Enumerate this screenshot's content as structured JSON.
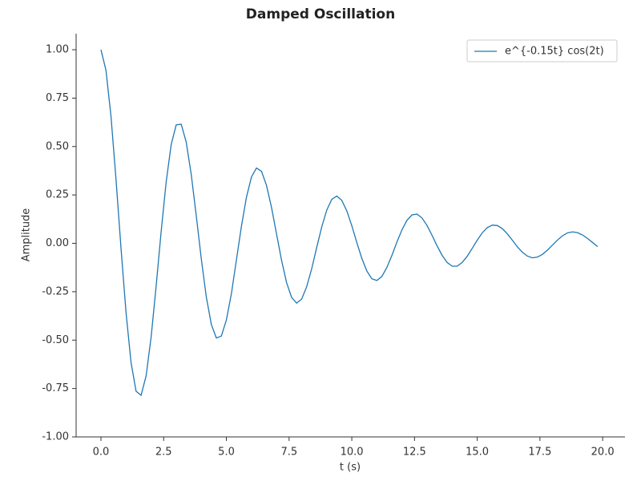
{
  "chart_data": {
    "type": "line",
    "title": "Damped Oscillation",
    "xlabel": "t (s)",
    "ylabel": "Amplitude",
    "xlim": [
      -0.99,
      20.89
    ],
    "ylim": [
      -1,
      1.083
    ],
    "xticks": [
      {
        "value": 0,
        "label": "0.0"
      },
      2.5,
      {
        "value": 5,
        "label": "5.0"
      },
      7.5,
      {
        "value": 10,
        "label": "10.0"
      },
      12.5,
      {
        "value": 15,
        "label": "15.0"
      },
      17.5,
      {
        "value": 20,
        "label": "20.0"
      }
    ],
    "yticks": [
      {
        "value": -1,
        "label": "-1.00"
      },
      {
        "value": -0.75,
        "label": "-0.75"
      },
      {
        "value": -0.5,
        "label": "-0.50"
      },
      {
        "value": -0.25,
        "label": "-0.25"
      },
      {
        "value": 0,
        "label": "0.00"
      },
      {
        "value": 0.25,
        "label": "0.25"
      },
      {
        "value": 0.5,
        "label": "0.50"
      },
      {
        "value": 0.75,
        "label": "0.75"
      },
      {
        "value": 1,
        "label": "1.00"
      }
    ],
    "grid": false,
    "legend": "upper right",
    "x": [
      0,
      0.2,
      0.4,
      0.6,
      0.8,
      1,
      1.2,
      1.4,
      1.6,
      1.8,
      2,
      2.2,
      2.4,
      2.6,
      2.8,
      3,
      3.2,
      3.4,
      3.6,
      3.8,
      4,
      4.2,
      4.4,
      4.6,
      4.8,
      5,
      5.2,
      5.4,
      5.6,
      5.8,
      6,
      6.2,
      6.4,
      6.6,
      6.8,
      7,
      7.2,
      7.4,
      7.6,
      7.8,
      8,
      8.2,
      8.4,
      8.6,
      8.8,
      9,
      9.2,
      9.4,
      9.6,
      9.8,
      10,
      10.2,
      10.4,
      10.6,
      10.8,
      11,
      11.2,
      11.4,
      11.6,
      11.8,
      12,
      12.2,
      12.4,
      12.6,
      12.8,
      13,
      13.2,
      13.4,
      13.6,
      13.8,
      14,
      14.2,
      14.4,
      14.6,
      14.8,
      15,
      15.2,
      15.4,
      15.6,
      15.8,
      16,
      16.2,
      16.4,
      16.6,
      16.8,
      17,
      17.2,
      17.4,
      17.6,
      17.8,
      18,
      18.2,
      18.4,
      18.6,
      18.8,
      19,
      19.2,
      19.4,
      19.6,
      19.8
    ],
    "series": [
      {
        "name": "e^{-0.15t} cos(2t)",
        "color": "#1f77b4",
        "values": [
          1,
          0.894,
          0.656,
          0.331,
          -0.026,
          -0.358,
          -0.616,
          -0.764,
          -0.785,
          -0.685,
          -0.484,
          -0.221,
          0.061,
          0.317,
          0.51,
          0.612,
          0.615,
          0.522,
          0.355,
          0.142,
          -0.08,
          -0.277,
          -0.419,
          -0.489,
          -0.479,
          -0.396,
          -0.26,
          -0.086,
          0.088,
          0.238,
          0.343,
          0.389,
          0.372,
          0.299,
          0.185,
          0.048,
          -0.088,
          -0.203,
          -0.279,
          -0.309,
          -0.288,
          -0.225,
          -0.132,
          -0.022,
          0.084,
          0.171,
          0.227,
          0.244,
          0.222,
          0.168,
          0.091,
          0.004,
          -0.078,
          -0.143,
          -0.183,
          -0.192,
          -0.171,
          -0.124,
          -0.062,
          0.007,
          0.07,
          0.119,
          0.147,
          0.151,
          0.131,
          0.092,
          0.041,
          -0.013,
          -0.062,
          -0.099,
          -0.118,
          -0.118,
          -0.099,
          -0.067,
          -0.026,
          0.016,
          0.054,
          0.081,
          0.094,
          0.092,
          0.076,
          0.049,
          0.016,
          -0.018,
          -0.046,
          -0.066,
          -0.075,
          -0.071,
          -0.057,
          -0.035,
          -0.009,
          0.017,
          0.039,
          0.054,
          0.059,
          0.055,
          0.043,
          0.025,
          0.004,
          -0.017
        ]
      }
    ]
  }
}
